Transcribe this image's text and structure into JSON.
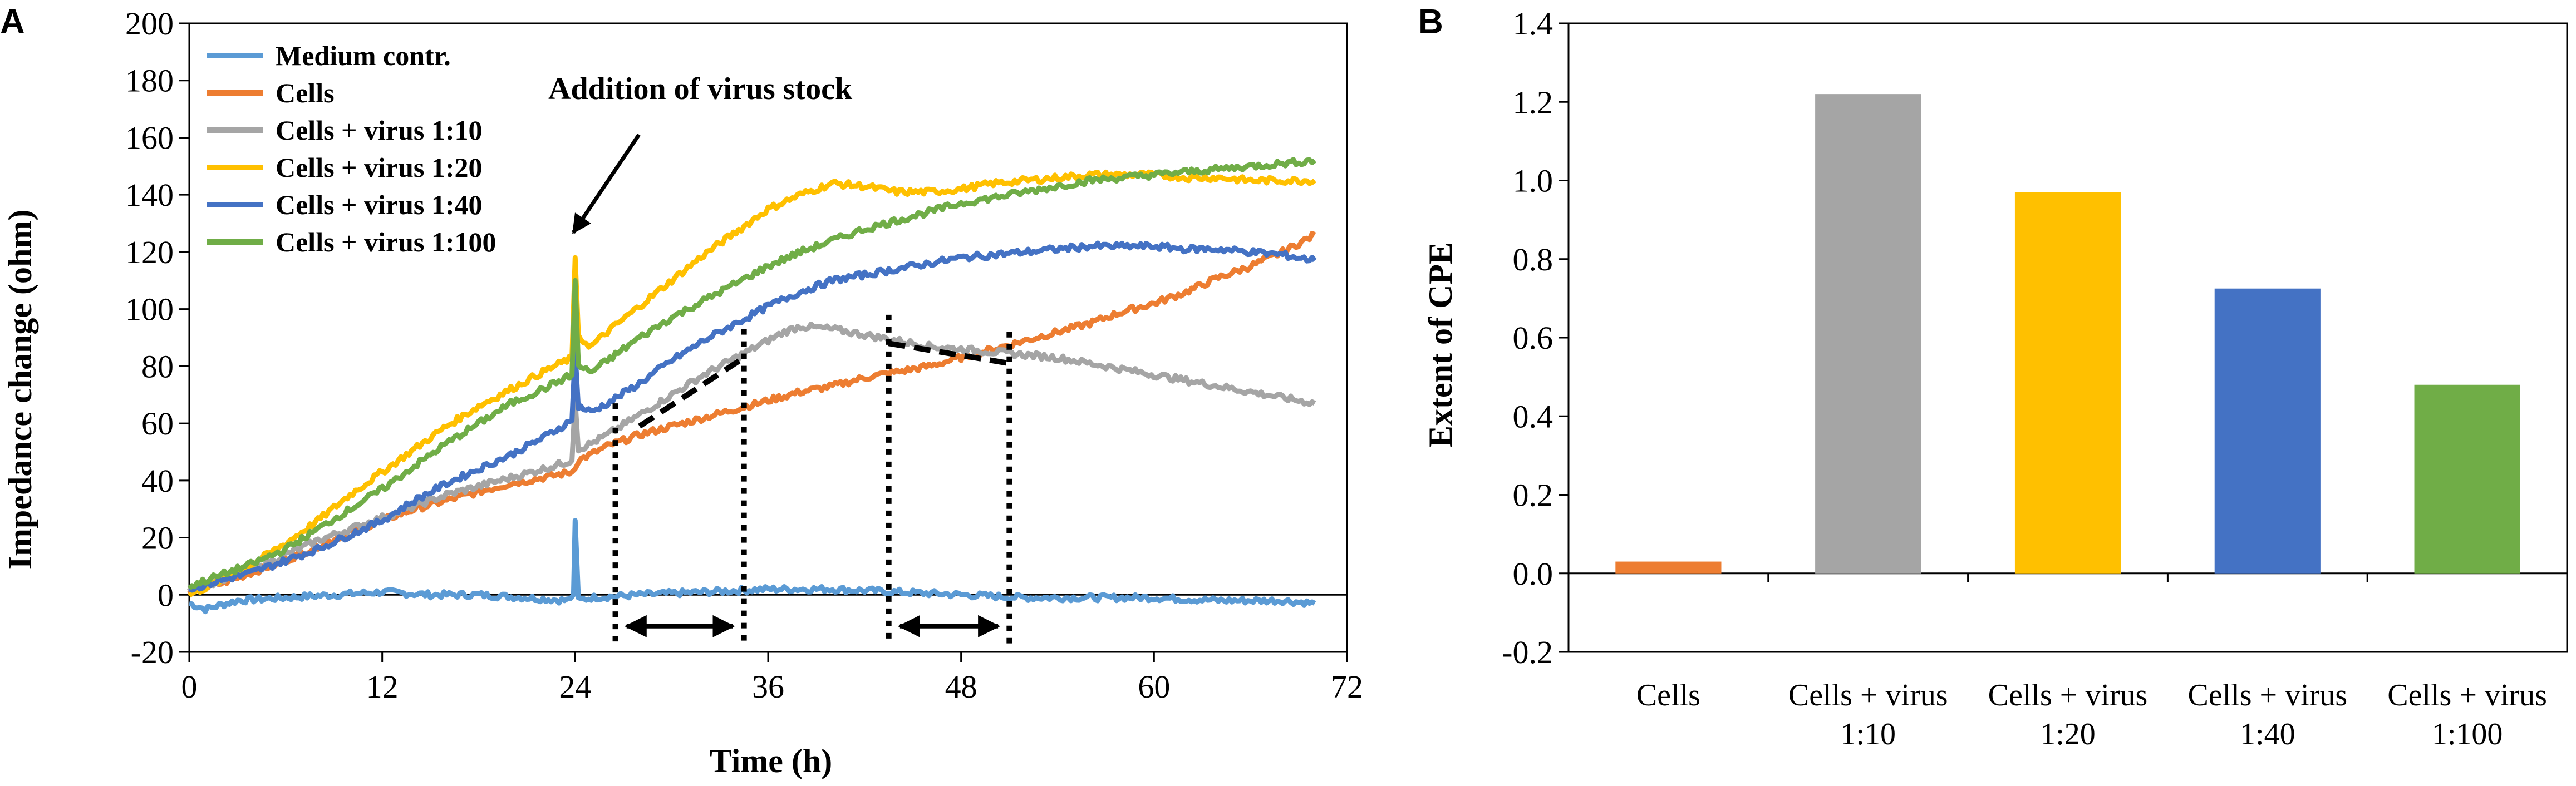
{
  "charts": {
    "a": {
      "panel_label": "A",
      "chart_data": {
        "type": "line",
        "xlabel": "Time (h)",
        "ylabel": "Impedance change (ohm)",
        "xlim": [
          0,
          72
        ],
        "ylim": [
          -20,
          200
        ],
        "x_ticks": [
          0,
          12,
          24,
          36,
          48,
          60,
          72
        ],
        "y_ticks": [
          -20,
          0,
          20,
          40,
          60,
          80,
          100,
          120,
          140,
          160,
          180,
          200
        ],
        "grid": false,
        "legend_position": "top-left",
        "annotation": "Addition of virus stock",
        "series": [
          {
            "name": "Medium contr.",
            "color": "#5B9BD5",
            "x": [
              0,
              1,
              3,
              6,
              9,
              12,
              15,
              18,
              21,
              23.5,
              23.9,
              24.0,
              24.2,
              25,
              28,
              32,
              36,
              40,
              44,
              48,
              52,
              56,
              60,
              64,
              68,
              70
            ],
            "y": [
              -3,
              -5,
              -2,
              -1,
              0,
              1,
              0,
              0,
              -1,
              -2,
              0,
              26,
              -2,
              -1,
              0,
              1,
              2,
              2,
              1,
              0,
              -1,
              -1,
              -1,
              -2,
              -2,
              -3
            ]
          },
          {
            "name": "Cells",
            "color": "#ED7D31",
            "x": [
              0,
              2,
              4,
              6,
              8,
              10,
              12,
              14,
              16,
              18,
              20,
              22,
              23.8,
              24.2,
              26,
              28,
              30,
              32,
              34,
              36,
              38,
              40,
              42,
              44,
              46,
              48,
              50,
              52,
              54,
              56,
              58,
              60,
              62,
              64,
              66,
              68,
              70
            ],
            "y": [
              1,
              4,
              8,
              12,
              17,
              22,
              26,
              30,
              33,
              36,
              39,
              41,
              43,
              47,
              52,
              56,
              59,
              62,
              65,
              68,
              71,
              73,
              76,
              78,
              80,
              83,
              86,
              89,
              92,
              95,
              99,
              102,
              106,
              111,
              115,
              120,
              126
            ]
          },
          {
            "name": "Cells + virus 1:10",
            "color": "#A5A5A5",
            "x": [
              0,
              2,
              4,
              6,
              8,
              10,
              12,
              14,
              16,
              18,
              20,
              22,
              23.8,
              24.0,
              24.2,
              25,
              26,
              28,
              30,
              32,
              34,
              36,
              37,
              38,
              40,
              42,
              44,
              46,
              48,
              50,
              52,
              54,
              56,
              58,
              60,
              62,
              64,
              66,
              68,
              70
            ],
            "y": [
              2,
              5,
              9,
              14,
              19,
              23,
              27,
              31,
              35,
              38,
              41,
              44,
              47,
              68,
              51,
              53,
              56,
              63,
              70,
              77,
              83,
              89,
              92,
              94,
              93,
              91,
              89,
              87,
              86,
              85,
              84,
              83,
              81,
              79,
              77,
              75,
              73,
              71,
              69,
              67
            ]
          },
          {
            "name": "Cells + virus 1:20",
            "color": "#FFC000",
            "x": [
              0,
              2,
              4,
              6,
              8,
              10,
              12,
              14,
              16,
              18,
              20,
              22,
              23.8,
              24.0,
              24.2,
              25,
              26,
              28,
              30,
              32,
              34,
              36,
              38,
              40,
              42,
              44,
              46,
              48,
              50,
              52,
              54,
              56,
              58,
              60,
              62,
              64,
              66,
              68,
              70
            ],
            "y": [
              0,
              5,
              11,
              18,
              26,
              35,
              43,
              51,
              59,
              66,
              72,
              78,
              83,
              118,
              90,
              87,
              92,
              101,
              110,
              119,
              127,
              135,
              140,
              144,
              143,
              141,
              141,
              142,
              144,
              145,
              146,
              147,
              147,
              147,
              146,
              146,
              145,
              145,
              145
            ]
          },
          {
            "name": "Cells + virus 1:40",
            "color": "#4472C4",
            "x": [
              0,
              2,
              4,
              6,
              8,
              10,
              12,
              14,
              16,
              18,
              20,
              22,
              23.8,
              24.0,
              24.2,
              25,
              26,
              28,
              30,
              32,
              34,
              36,
              38,
              40,
              42,
              44,
              46,
              48,
              50,
              52,
              54,
              56,
              58,
              60,
              62,
              64,
              66,
              68,
              70
            ],
            "y": [
              2,
              5,
              8,
              12,
              16,
              21,
              26,
              33,
              39,
              44,
              49,
              55,
              61,
              85,
              66,
              64,
              67,
              74,
              82,
              89,
              95,
              101,
              106,
              110,
              112,
              114,
              116,
              118,
              119,
              120,
              121,
              122,
              122,
              122,
              121,
              121,
              120,
              119,
              117
            ]
          },
          {
            "name": "Cells + virus 1:100",
            "color": "#70AD47",
            "x": [
              0,
              2,
              4,
              6,
              8,
              10,
              12,
              14,
              16,
              18,
              20,
              22,
              23.8,
              24.0,
              24.2,
              25,
              26,
              28,
              30,
              32,
              34,
              36,
              38,
              40,
              42,
              44,
              46,
              48,
              50,
              52,
              54,
              56,
              58,
              60,
              62,
              64,
              66,
              68,
              70
            ],
            "y": [
              3,
              7,
              11,
              16,
              23,
              30,
              37,
              45,
              53,
              60,
              67,
              72,
              77,
              110,
              80,
              78,
              82,
              90,
              97,
              103,
              109,
              115,
              120,
              124,
              128,
              131,
              134,
              137,
              139,
              141,
              143,
              145,
              146,
              147,
              148,
              149,
              150,
              151,
              152
            ]
          }
        ]
      }
    },
    "b": {
      "panel_label": "B",
      "chart_data": {
        "type": "bar",
        "ylabel": "Extent of CPE",
        "xlabel": "",
        "ylim": [
          -0.2,
          1.4
        ],
        "y_ticks": [
          "-0.2",
          "0.0",
          "0.2",
          "0.4",
          "0.6",
          "0.8",
          "1.0",
          "1.2",
          "1.4"
        ],
        "grid": false,
        "categories": [
          [
            "Cells"
          ],
          [
            "Cells + virus",
            "1:10"
          ],
          [
            "Cells + virus",
            "1:20"
          ],
          [
            "Cells + virus",
            "1:40"
          ],
          [
            "Cells + virus",
            "1:100"
          ]
        ],
        "values": [
          0.03,
          1.22,
          0.97,
          0.725,
          0.48
        ],
        "colors": [
          "#ED7D31",
          "#A5A5A5",
          "#FFC000",
          "#4472C4",
          "#70AD47"
        ]
      }
    }
  }
}
